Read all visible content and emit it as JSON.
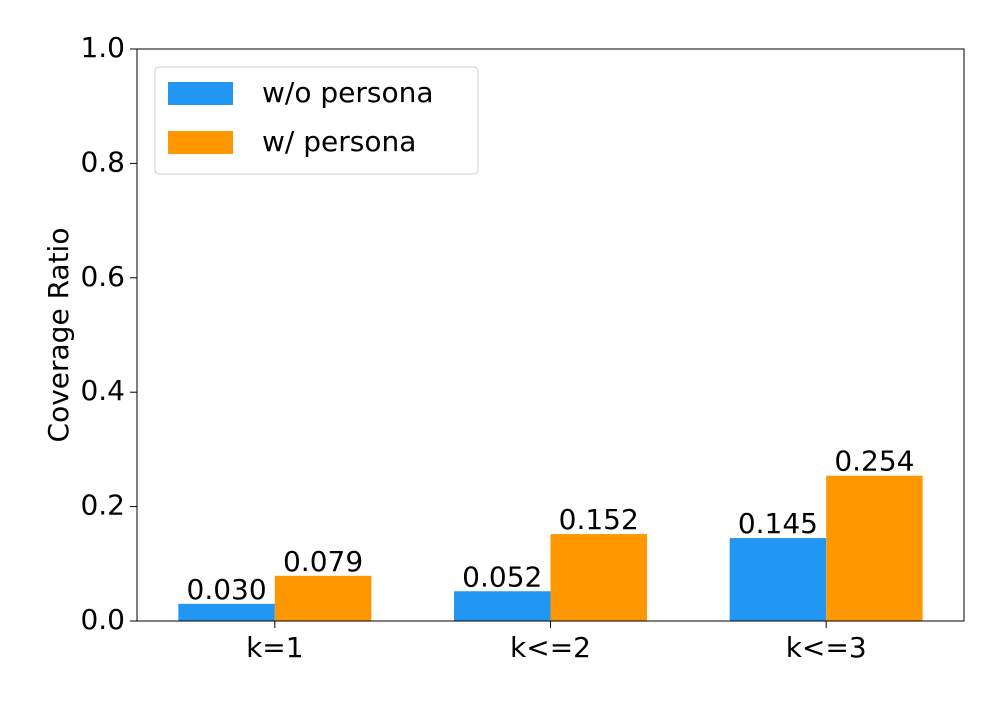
{
  "chart_data": {
    "type": "bar",
    "y_label": "Coverage Ratio",
    "categories": [
      "k=1",
      "k<=2",
      "k<=3"
    ],
    "series": [
      {
        "name": "w/o persona",
        "color": "#2196f3",
        "values": [
          0.03,
          0.052,
          0.145
        ],
        "value_labels": [
          "0.030",
          "0.052",
          "0.145"
        ]
      },
      {
        "name": "w/ persona",
        "color": "#ff9800",
        "values": [
          0.079,
          0.152,
          0.254
        ],
        "value_labels": [
          "0.079",
          "0.152",
          "0.254"
        ]
      }
    ],
    "ylim": [
      0,
      1
    ],
    "yticks": [
      {
        "value": 0,
        "label": "0.0"
      },
      {
        "value": 0.2,
        "label": "0.2"
      },
      {
        "value": 0.4,
        "label": "0.4"
      },
      {
        "value": 0.6,
        "label": "0.6"
      },
      {
        "value": 0.8,
        "label": "0.8"
      },
      {
        "value": 1,
        "label": "1.0"
      }
    ],
    "legend": "upper left",
    "grid": false
  }
}
